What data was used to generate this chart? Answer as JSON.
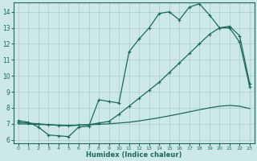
{
  "title": "",
  "xlabel": "Humidex (Indice chaleur)",
  "bg_color": "#cce8e8",
  "grid_color": "#aacccc",
  "line_color": "#1a6b5a",
  "xlim": [
    -0.5,
    23.5
  ],
  "ylim": [
    5.8,
    14.6
  ],
  "xticks": [
    0,
    1,
    2,
    3,
    4,
    5,
    6,
    7,
    8,
    9,
    10,
    11,
    12,
    13,
    14,
    15,
    16,
    17,
    18,
    19,
    20,
    21,
    22,
    23
  ],
  "yticks": [
    6,
    7,
    8,
    9,
    10,
    11,
    12,
    13,
    14
  ],
  "line1_x": [
    0,
    1,
    2,
    3,
    4,
    5,
    6,
    7,
    8,
    9,
    10,
    11,
    12,
    13,
    14,
    15,
    16,
    17,
    18,
    19,
    20,
    21,
    22,
    23
  ],
  "line1_y": [
    7.2,
    7.1,
    6.8,
    6.3,
    6.25,
    6.2,
    6.8,
    6.85,
    8.5,
    8.4,
    8.3,
    11.5,
    12.3,
    13.0,
    13.9,
    14.0,
    13.5,
    14.3,
    14.5,
    13.8,
    13.0,
    13.0,
    12.1,
    9.3
  ],
  "line2_x": [
    0,
    1,
    2,
    3,
    4,
    5,
    6,
    7,
    8,
    9,
    10,
    11,
    12,
    13,
    14,
    15,
    16,
    17,
    18,
    19,
    20,
    21,
    22,
    23
  ],
  "line2_y": [
    7.1,
    7.05,
    7.0,
    6.95,
    6.9,
    6.88,
    6.92,
    6.95,
    7.05,
    7.15,
    7.6,
    8.1,
    8.6,
    9.1,
    9.6,
    10.2,
    10.8,
    11.4,
    12.0,
    12.6,
    13.0,
    13.1,
    12.5,
    9.5
  ],
  "line3_x": [
    0,
    1,
    2,
    3,
    4,
    5,
    6,
    7,
    8,
    9,
    10,
    11,
    12,
    13,
    14,
    15,
    16,
    17,
    18,
    19,
    20,
    21,
    22,
    23
  ],
  "line3_y": [
    7.0,
    6.98,
    6.96,
    6.94,
    6.92,
    6.9,
    6.92,
    6.94,
    6.97,
    7.0,
    7.05,
    7.1,
    7.18,
    7.28,
    7.38,
    7.5,
    7.62,
    7.75,
    7.88,
    8.0,
    8.1,
    8.15,
    8.1,
    7.95
  ],
  "marker_x_line1": [
    0,
    1,
    2,
    3,
    4,
    5,
    6,
    7,
    8,
    9,
    10,
    15,
    17,
    18,
    19,
    20,
    21,
    22,
    23
  ],
  "line1_marker": "+",
  "line2_marker": "+"
}
